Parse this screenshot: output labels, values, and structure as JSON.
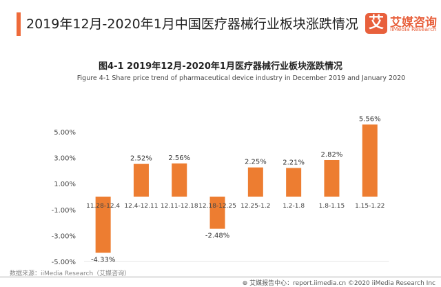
{
  "header": {
    "title": "2019年12月-2020年1月中国医疗器械行业板块涨跌情况",
    "logo_mark": "艾",
    "logo_cn": "艾媒咨询",
    "logo_en": "iiMedia Research"
  },
  "chart_data": {
    "type": "bar",
    "title": "图4-1 2019年12月-2020年1月医疗器械行业板块涨跌情况",
    "subtitle": "Figure 4-1 Share price trend of pharmaceutical device industry  in December 2019 and January 2020",
    "categories": [
      "11.28-12.4",
      "12.4-12.11",
      "12.11-12.18",
      "12.18-12.25",
      "12.25-1.2",
      "1.2-1.8",
      "1.8-1.15",
      "1.15-1.22"
    ],
    "values": [
      -4.33,
      2.52,
      2.56,
      -2.48,
      2.25,
      2.21,
      2.82,
      5.56
    ],
    "data_labels": [
      "-4.33%",
      "2.52%",
      "2.56%",
      "-2.48%",
      "2.25%",
      "2.21%",
      "2.82%",
      "5.56%"
    ],
    "yticks": [
      "5.00%",
      "3.00%",
      "1.00%",
      "-1.00%",
      "-3.00%",
      "-5.00%"
    ],
    "ytick_values": [
      5,
      3,
      1,
      -1,
      -3,
      -5
    ],
    "ylim": [
      -5,
      5.6
    ],
    "color": "#ed7d31"
  },
  "source": "数据来源：iiMedia Research（艾媒咨询）",
  "footer": "艾媒报告中心：report.iimedia.cn  ©2020  iiMedia Research Inc"
}
